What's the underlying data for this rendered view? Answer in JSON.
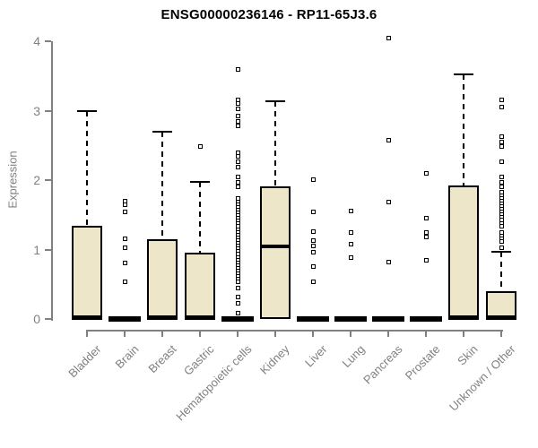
{
  "chart_data": {
    "type": "boxplot",
    "title": "ENSG00000236146 - RP11-65J3.6",
    "ylabel": "Expression",
    "xlabel": "",
    "ylim": [
      0,
      4
    ],
    "yticks": [
      0,
      1,
      2,
      3,
      4
    ],
    "grid": false,
    "legend": "none",
    "categories": [
      "Bladder",
      "Brain",
      "Breast",
      "Gastric",
      "Hematopoietic cells",
      "Kidney",
      "Liver",
      "Lung",
      "Pancreas",
      "Prostate",
      "Skin",
      "Unknown / Other"
    ],
    "boxes": [
      {
        "category": "Bladder",
        "q1": 0,
        "median": 0.02,
        "q3": 1.34,
        "whisker_low": 0,
        "whisker_high": 3.0,
        "outliers": []
      },
      {
        "category": "Brain",
        "q1": 0,
        "median": 0,
        "q3": 0,
        "whisker_low": 0,
        "whisker_high": 0,
        "outliers": [
          1.7,
          1.64,
          1.54,
          1.15,
          1.02,
          0.81,
          0.53
        ]
      },
      {
        "category": "Breast",
        "q1": 0,
        "median": 0.02,
        "q3": 1.15,
        "whisker_low": 0,
        "whisker_high": 2.7,
        "outliers": []
      },
      {
        "category": "Gastric",
        "q1": 0,
        "median": 0.02,
        "q3": 0.95,
        "whisker_low": 0,
        "whisker_high": 1.97,
        "outliers": [
          2.49
        ]
      },
      {
        "category": "Hematopoietic cells",
        "q1": 0,
        "median": 0,
        "q3": 0,
        "whisker_low": 0,
        "whisker_high": 0,
        "outliers": [
          3.6,
          3.16,
          3.1,
          3.02,
          2.92,
          2.85,
          2.78,
          2.4,
          2.34,
          2.26,
          2.19,
          2.05,
          1.97,
          1.9,
          1.73,
          1.69,
          1.65,
          1.61,
          1.57,
          1.53,
          1.49,
          1.45,
          1.41,
          1.37,
          1.33,
          1.29,
          1.25,
          1.21,
          1.17,
          1.13,
          1.09,
          1.05,
          1.01,
          0.97,
          0.93,
          0.89,
          0.85,
          0.81,
          0.77,
          0.73,
          0.69,
          0.65,
          0.61,
          0.57,
          0.53,
          0.45,
          0.31,
          0.22,
          0.09
        ]
      },
      {
        "category": "Kidney",
        "q1": 0,
        "median": 1.05,
        "q3": 1.91,
        "whisker_low": 0,
        "whisker_high": 3.13,
        "outliers": []
      },
      {
        "category": "Liver",
        "q1": 0,
        "median": 0,
        "q3": 0,
        "whisker_low": 0,
        "whisker_high": 0,
        "outliers": [
          2.01,
          1.54,
          1.26,
          1.13,
          1.05,
          0.96,
          0.76,
          0.53
        ]
      },
      {
        "category": "Lung",
        "q1": 0,
        "median": 0,
        "q3": 0,
        "whisker_low": 0,
        "whisker_high": 0,
        "outliers": [
          1.56,
          1.25,
          1.08,
          0.88
        ]
      },
      {
        "category": "Pancreas",
        "q1": 0,
        "median": 0,
        "q3": 0,
        "whisker_low": 0,
        "whisker_high": 0,
        "outliers": [
          4.05,
          2.58,
          1.68,
          0.82
        ]
      },
      {
        "category": "Prostate",
        "q1": 0,
        "median": 0,
        "q3": 0,
        "whisker_low": 0,
        "whisker_high": 0,
        "outliers": [
          2.1,
          1.45,
          1.24,
          1.18,
          0.85
        ]
      },
      {
        "category": "Skin",
        "q1": 0,
        "median": 0.02,
        "q3": 1.92,
        "whisker_low": 0,
        "whisker_high": 3.52,
        "outliers": []
      },
      {
        "category": "Unknown / Other",
        "q1": 0,
        "median": 0.02,
        "q3": 0.4,
        "whisker_low": 0,
        "whisker_high": 0.97,
        "outliers": [
          3.15,
          3.05,
          2.62,
          2.55,
          2.49,
          2.27,
          2.04,
          1.97,
          1.9,
          1.82,
          1.78,
          1.74,
          1.7,
          1.66,
          1.62,
          1.58,
          1.54,
          1.5,
          1.46,
          1.42,
          1.38,
          1.34,
          1.24,
          1.2,
          1.15,
          1.11,
          1.02
        ]
      }
    ],
    "colors": {
      "box_fill": "#EDE6C9",
      "box_border": "#000000",
      "median": "#000000",
      "whisker": "#000000",
      "outlier": "#000000",
      "axis": "#808080",
      "tick_label": "#808080",
      "title": "#000000"
    }
  }
}
